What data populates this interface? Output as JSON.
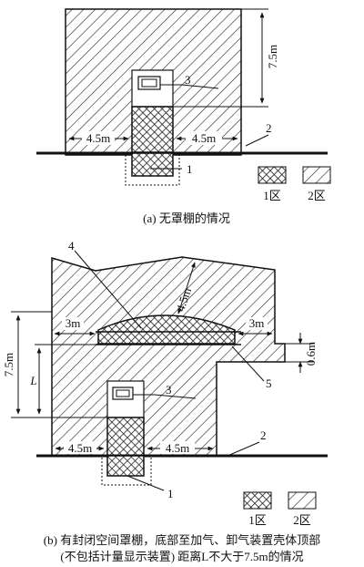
{
  "top": {
    "height_dim": "7.5m",
    "left_dim": "4.5m",
    "right_dim": "4.5m",
    "label_3": "3",
    "label_2": "2",
    "label_1": "1",
    "legend_zone1": "1区",
    "legend_zone2": "2区",
    "caption": "(a) 无罩棚的情况"
  },
  "bottom": {
    "label_4": "4",
    "top_dim": "4.5m",
    "left_3m": "3m",
    "right_3m": "3m",
    "dim_06": "0.6m",
    "height_dim": "7.5m",
    "L_dim": "L",
    "label_5": "5",
    "label_3": "3",
    "label_2": "2",
    "label_1": "1",
    "left_dim": "4.5m",
    "right_dim": "4.5m",
    "legend_zone1": "1区",
    "legend_zone2": "2区",
    "caption_line1": "(b) 有封闭空间罩棚，底部至加气、卸气装置壳体顶部",
    "caption_line2": "(不包括计量显示装置) 距离L不大于7.5m的情况"
  }
}
